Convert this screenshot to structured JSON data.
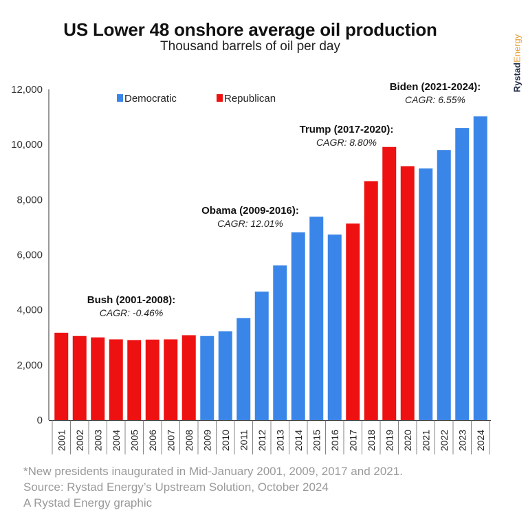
{
  "chart_data": {
    "type": "bar",
    "title": "US Lower 48 onshore average oil production",
    "subtitle": "Thousand barrels of oil per day",
    "categories": [
      "2001",
      "2002",
      "2003",
      "2004",
      "2005",
      "2006",
      "2007",
      "2008",
      "2009",
      "2010",
      "2011",
      "2012",
      "2013",
      "2014",
      "2015",
      "2016",
      "2017",
      "2018",
      "2019",
      "2020",
      "2021",
      "2022",
      "2023",
      "2024"
    ],
    "values": [
      3170,
      3050,
      3000,
      2930,
      2900,
      2920,
      2930,
      3080,
      3050,
      3220,
      3700,
      4660,
      5610,
      6810,
      7380,
      6730,
      7130,
      8670,
      9910,
      9210,
      9130,
      9800,
      10600,
      11020
    ],
    "parties": [
      "R",
      "R",
      "R",
      "R",
      "R",
      "R",
      "R",
      "R",
      "D",
      "D",
      "D",
      "D",
      "D",
      "D",
      "D",
      "D",
      "R",
      "R",
      "R",
      "R",
      "D",
      "D",
      "D",
      "D"
    ],
    "ylim": [
      0,
      12000
    ],
    "yticks": [
      0,
      2000,
      4000,
      6000,
      8000,
      10000,
      12000
    ],
    "ytick_labels": [
      "0",
      "2,000",
      "4,000",
      "6,000",
      "8,000",
      "10,000",
      "12,000"
    ],
    "xlabel": "",
    "ylabel": "",
    "colors": {
      "D": "#3a86e8",
      "R": "#ee1111"
    },
    "legend": [
      {
        "key": "D",
        "label": "Democratic"
      },
      {
        "key": "R",
        "label": "Republican"
      }
    ],
    "legend_position": "top-left",
    "annotations": [
      {
        "name": "Bush (2001-2008):",
        "cagr": "CAGR: -0.46%"
      },
      {
        "name": "Obama (2009-2016):",
        "cagr": "CAGR: 12.01%"
      },
      {
        "name": "Trump (2017-2020):",
        "cagr": "CAGR: 8.80%"
      },
      {
        "name": "Biden (2021-2024):",
        "cagr": "CAGR: 6.55%"
      }
    ]
  },
  "brand": {
    "part1": "Rystad",
    "part2": "Energy"
  },
  "footnotes": [
    "*New presidents inaugurated in Mid-January 2001, 2009, 2017 and 2021.",
    "Source: Rystad Energy’s Upstream Solution, October 2024",
    "A Rystad Energy graphic"
  ]
}
